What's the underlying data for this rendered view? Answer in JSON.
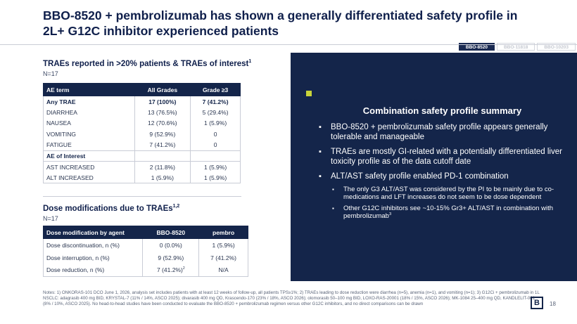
{
  "title": "BBO-8520 + pembrolizumab has shown a generally differentiated safety profile in 2L+ G12C inhibitor experienced patients",
  "tabs": [
    {
      "label": "BBO-8520",
      "active": true
    },
    {
      "label": "BBO-11818",
      "active": false
    },
    {
      "label": "BBO-10203",
      "active": false
    }
  ],
  "traes": {
    "title": "TRAEs reported in >20% patients & TRAEs of interest",
    "title_sup": "1",
    "n": "N=17",
    "headers": [
      "AE term",
      "All Grades",
      "Grade ≥3"
    ],
    "rows": [
      [
        "Any TRAE",
        "17 (100%)",
        "7 (41.2%)"
      ],
      [
        "DIARRHEA",
        "13 (76.5%)",
        "5 (29.4%)"
      ],
      [
        "NAUSEA",
        "12 (70.6%)",
        "1 (5.9%)"
      ],
      [
        "VOMITING",
        "9 (52.9%)",
        "0"
      ],
      [
        "FATIGUE",
        "7 (41.2%)",
        "0"
      ],
      [
        "AE of Interest",
        "",
        ""
      ],
      [
        "AST INCREASED",
        "2 (11.8%)",
        "1 (5.9%)"
      ],
      [
        "ALT INCREASED",
        "1 (5.9%)",
        "1 (5.9%)"
      ]
    ]
  },
  "dose": {
    "title": "Dose modifications due to TRAEs",
    "title_sup": "1,2",
    "n": "N=17",
    "headers": [
      "Dose modification by agent",
      "BBO-8520",
      "pembro"
    ],
    "rows": [
      [
        "Dose discontinuation, n (%)",
        "0 (0.0%)",
        "1 (5.9%)"
      ],
      [
        "Dose interruption, n (%)",
        "9 (52.9%)",
        "7 (41.2%)"
      ],
      [
        "Dose reduction, n (%)",
        "7 (41.2%)",
        "N/A"
      ]
    ],
    "reduction_sup": "2"
  },
  "summary": {
    "title": "Combination safety profile summary",
    "bullets": [
      "BBO-8520 + pembrolizumab safety profile appears generally tolerable and manageable",
      "TRAEs are mostly GI-related with a potentially differentiated liver toxicity profile as of the data cutoff date",
      "ALT/AST safety profile enabled PD-1 combination"
    ],
    "sub_bullets": [
      "The only G3 ALT/AST was considered by the PI to be mainly due to co-medications and LFT increases do not seem to be dose dependent",
      "Other G12C inhibitors see ~10-15% Gr3+ ALT/AST in combination with pembrolizumab"
    ],
    "sub_bullet_sup": "3"
  },
  "notes": "Notes: 1) ONKORAS-101 DCO June 1, 2026, analysis set includes patients with at least 12 weeks of follow-up, all patients TPS≥1%; 2) TRAEs leading to dose reduction were diarrhea (n=5), anemia (n=1), and vomiting (n=1); 3) G12Ci + pembrolizumab in 1L NSCLC: adagrasib 400 mg BID, KRYSTAL-7 (11% / 14%, ASCO 2025); divarasib 400 mg QD, Krascendo-170 (23% / 18%, ASCO 2026); olomorasib 50–100 mg BID, LOXO-RAS-20001 (18% / 15%, ASCO 2026); MK-1084 25–400 mg QD, KANDLELIT-001 (8% / 10%, ASCO 2025). No head-to-head studies have been conducted to evaluate the BBO-8520 + pembrolizumab regimen versus other G12C inhibitors, and no direct comparisons can be drawn",
  "logo_text": "B",
  "page_number": "18",
  "colors": {
    "navy": "#14254a",
    "accent": "#c8d43a"
  }
}
